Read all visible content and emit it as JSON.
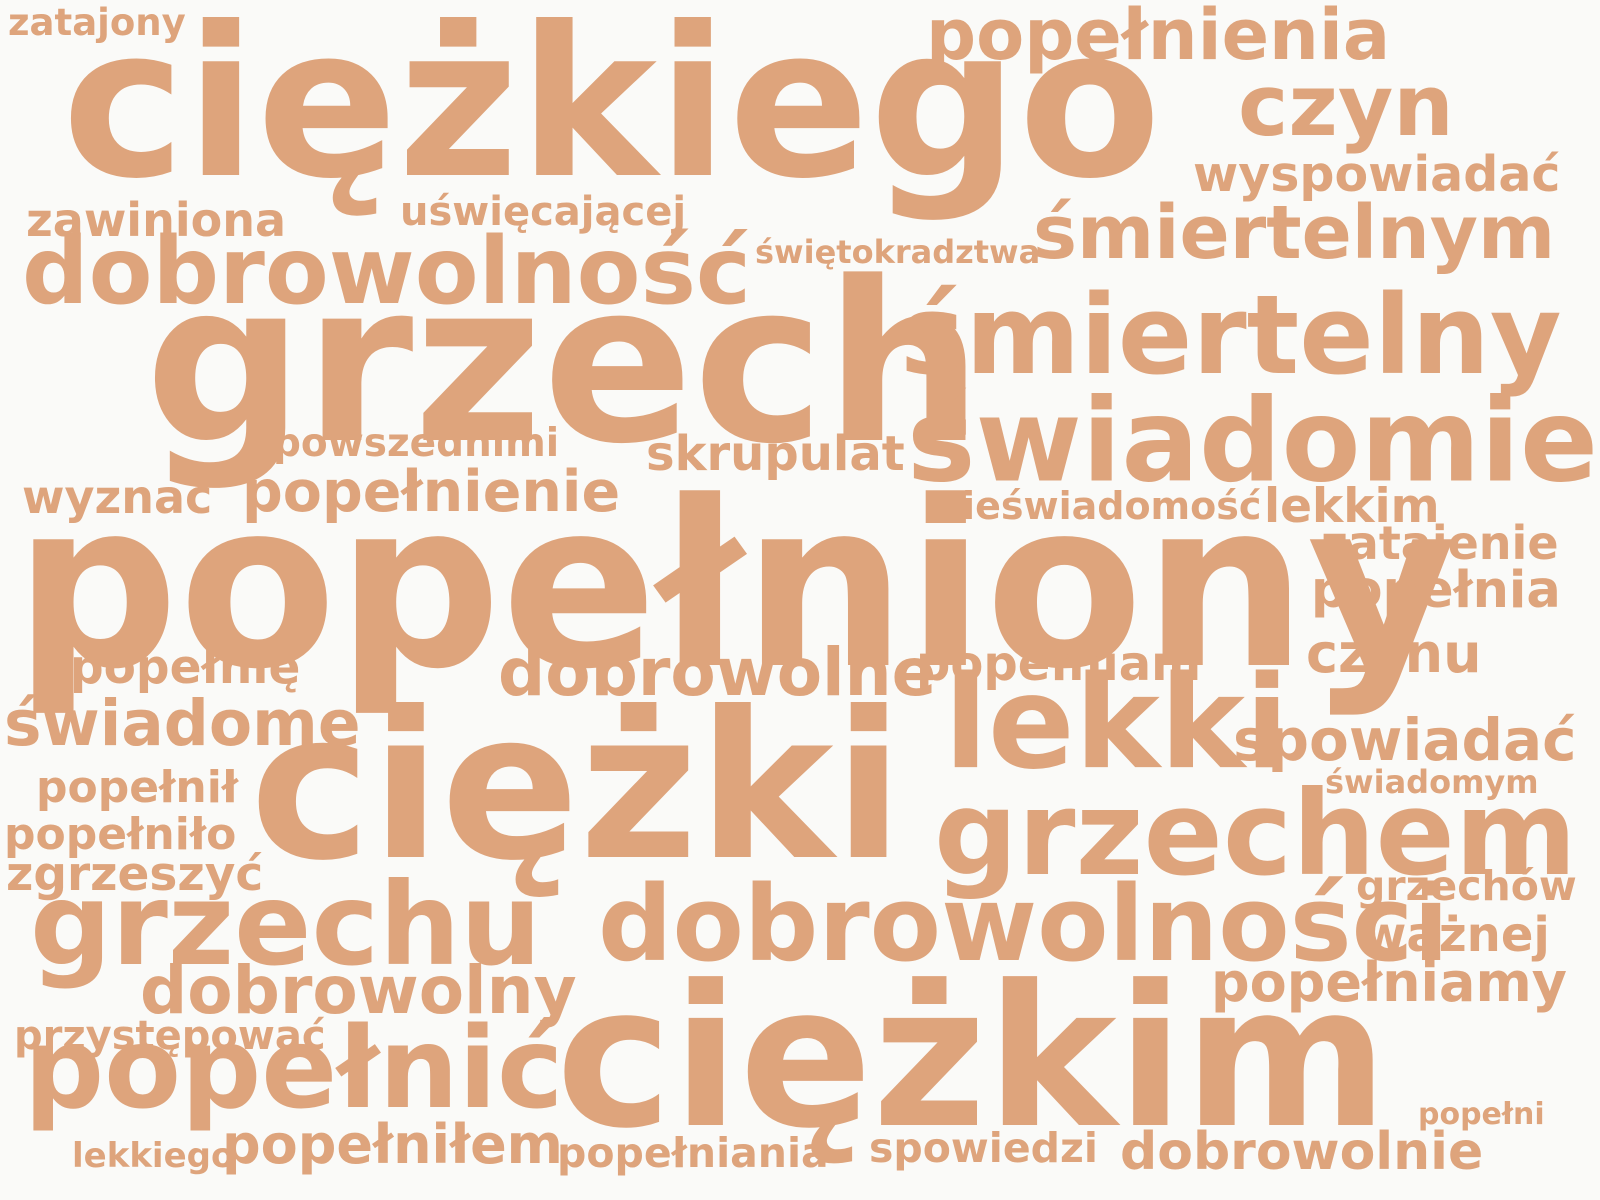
{
  "colors": {
    "background": "#fafaf8",
    "word": "#dea47c"
  },
  "words": [
    {
      "id": "w01",
      "text": "zatajony"
    },
    {
      "id": "w02",
      "text": "ciężkiego"
    },
    {
      "id": "w03",
      "text": "popełnienia"
    },
    {
      "id": "w04",
      "text": "czyn"
    },
    {
      "id": "w05",
      "text": "wyspowiadać"
    },
    {
      "id": "w06",
      "text": "zawiniona"
    },
    {
      "id": "w07",
      "text": "uświęcającej"
    },
    {
      "id": "w08",
      "text": "świętokradztwa"
    },
    {
      "id": "w09",
      "text": "śmiertelnym"
    },
    {
      "id": "w10",
      "text": "dobrowolność"
    },
    {
      "id": "w11",
      "text": "grzech"
    },
    {
      "id": "w12",
      "text": "śmiertelny"
    },
    {
      "id": "w13",
      "text": "powszednimi"
    },
    {
      "id": "w14",
      "text": "skrupulat"
    },
    {
      "id": "w15",
      "text": "świadomie"
    },
    {
      "id": "w16",
      "text": "wyznać"
    },
    {
      "id": "w17",
      "text": "popełnienie"
    },
    {
      "id": "w18",
      "text": "nieświadomość"
    },
    {
      "id": "w19",
      "text": "lekkim"
    },
    {
      "id": "w20",
      "text": "zatajenie"
    },
    {
      "id": "w21",
      "text": "popełniony"
    },
    {
      "id": "w22",
      "text": "popełnia"
    },
    {
      "id": "w23",
      "text": "czynu"
    },
    {
      "id": "w24",
      "text": "popełnię"
    },
    {
      "id": "w25",
      "text": "dobrowolne"
    },
    {
      "id": "w26",
      "text": "popełniam"
    },
    {
      "id": "w27",
      "text": "świadome"
    },
    {
      "id": "w28",
      "text": "lekki"
    },
    {
      "id": "w29",
      "text": "spowiadać"
    },
    {
      "id": "w30",
      "text": "ciężki"
    },
    {
      "id": "w31",
      "text": "świadomym"
    },
    {
      "id": "w32",
      "text": "popełnił"
    },
    {
      "id": "w33",
      "text": "grzechem"
    },
    {
      "id": "w34",
      "text": "popełniło"
    },
    {
      "id": "w35",
      "text": "zgrzeszyć"
    },
    {
      "id": "w36",
      "text": "grzechów"
    },
    {
      "id": "w37",
      "text": "grzechu"
    },
    {
      "id": "w38",
      "text": "dobrowolności"
    },
    {
      "id": "w39",
      "text": "ważnej"
    },
    {
      "id": "w40",
      "text": "dobrowolny"
    },
    {
      "id": "w41",
      "text": "popełniamy"
    },
    {
      "id": "w42",
      "text": "przystępować"
    },
    {
      "id": "w43",
      "text": "popełnić"
    },
    {
      "id": "w44",
      "text": "ciężkim"
    },
    {
      "id": "w45",
      "text": "popełni"
    },
    {
      "id": "w46",
      "text": "lekkiego"
    },
    {
      "id": "w47",
      "text": "popełniłem"
    },
    {
      "id": "w48",
      "text": "popełniania"
    },
    {
      "id": "w49",
      "text": "spowiedzi"
    },
    {
      "id": "w50",
      "text": "dobrowolnie"
    }
  ]
}
